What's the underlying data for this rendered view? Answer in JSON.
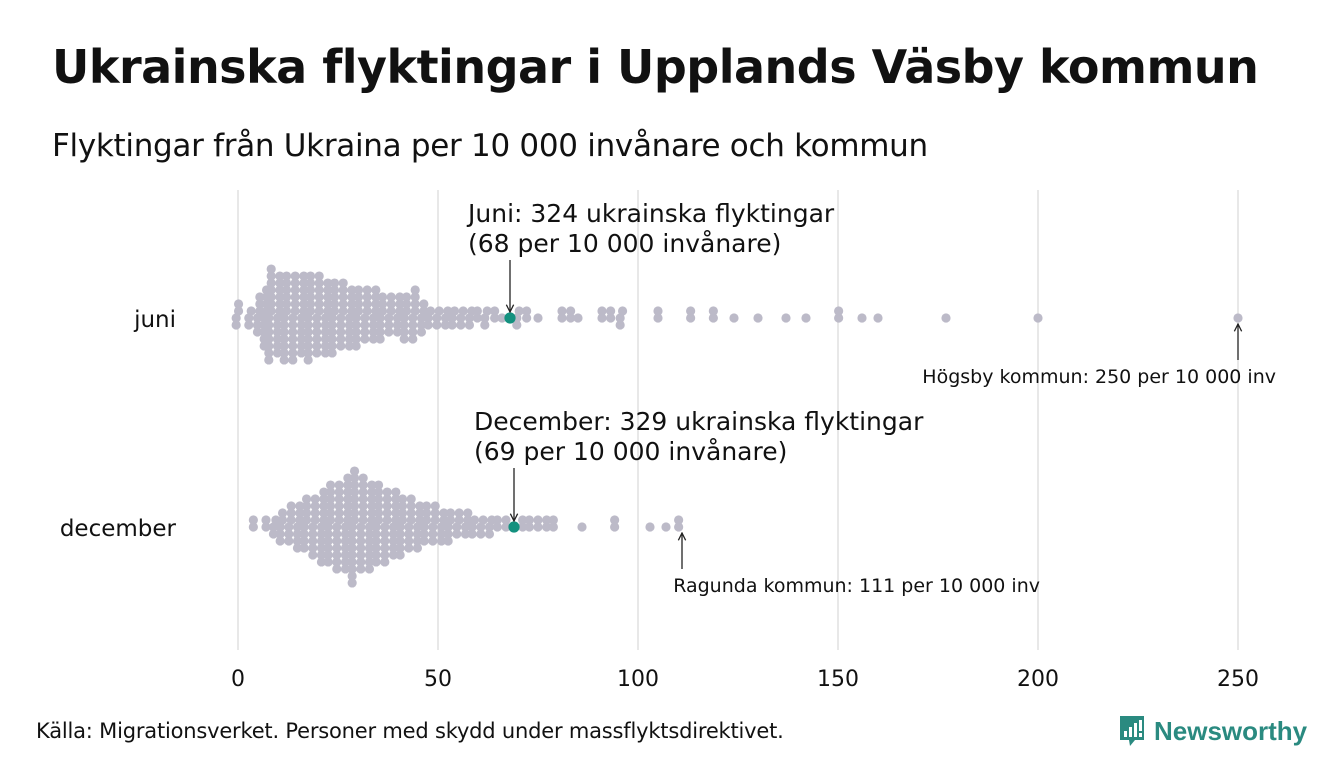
{
  "header": {
    "title": "Ukrainska flyktingar i Upplands Väsby kommun",
    "subtitle": "Flyktingar från Ukraina per 10 000 invånare och kommun"
  },
  "footer": {
    "source": "Källa: Migrationsverket. Personer med skydd under massflyktsdirektivet.",
    "logo_text": "Newsworthy"
  },
  "colors": {
    "point": "#bcbac8",
    "highlight": "#14917f",
    "grid": "#d0d0d0",
    "brand": "#2a8a80"
  },
  "chart_data": {
    "type": "scatter",
    "subtype": "beeswarm",
    "title": "Ukrainska flyktingar i Upplands Väsby kommun",
    "subtitle": "Flyktingar från Ukraina per 10 000 invånare och kommun",
    "xlabel": "",
    "ylabel": "",
    "xlim": [
      0,
      250
    ],
    "x_ticks": [
      0,
      50,
      100,
      150,
      200,
      250
    ],
    "grid": true,
    "categories": [
      "juni",
      "december"
    ],
    "series": [
      {
        "name": "juni",
        "highlight": {
          "value": 68,
          "label_line1": "Juni: 324 ukrainska flyktingar",
          "label_line2": "(68 per 10 000 invånare)"
        },
        "max_annotation": {
          "value": 250,
          "label": "Högsby kommun: 250 per 10 000 inv"
        },
        "distribution": [
          [
            0,
            4
          ],
          [
            3,
            3
          ],
          [
            5,
            6
          ],
          [
            7,
            9
          ],
          [
            8,
            14
          ],
          [
            10,
            12
          ],
          [
            12,
            13
          ],
          [
            14,
            13
          ],
          [
            16,
            12
          ],
          [
            18,
            13
          ],
          [
            20,
            12
          ],
          [
            22,
            11
          ],
          [
            24,
            11
          ],
          [
            26,
            10
          ],
          [
            28,
            9
          ],
          [
            30,
            9
          ],
          [
            32,
            8
          ],
          [
            34,
            8
          ],
          [
            36,
            7
          ],
          [
            38,
            6
          ],
          [
            40,
            6
          ],
          [
            42,
            7
          ],
          [
            44,
            8
          ],
          [
            46,
            5
          ],
          [
            48,
            3
          ],
          [
            50,
            3
          ],
          [
            52,
            3
          ],
          [
            54,
            3
          ],
          [
            56,
            3
          ],
          [
            58,
            3
          ],
          [
            60,
            2
          ],
          [
            62,
            3
          ],
          [
            64,
            2
          ],
          [
            66,
            1
          ],
          [
            70,
            3
          ],
          [
            72,
            2
          ],
          [
            75,
            1
          ],
          [
            81,
            2
          ],
          [
            83,
            2
          ],
          [
            85,
            1
          ],
          [
            91,
            2
          ],
          [
            93,
            2
          ],
          [
            96,
            3
          ],
          [
            105,
            2
          ],
          [
            113,
            2
          ],
          [
            119,
            2
          ],
          [
            124,
            1
          ],
          [
            130,
            1
          ],
          [
            137,
            1
          ],
          [
            142,
            1
          ],
          [
            150,
            2
          ],
          [
            156,
            1
          ],
          [
            160,
            1
          ],
          [
            177,
            1
          ],
          [
            200,
            1
          ],
          [
            250,
            1
          ]
        ]
      },
      {
        "name": "december",
        "highlight": {
          "value": 69,
          "label_line1": "December: 329 ukrainska flyktingar",
          "label_line2": "(69 per 10 000 invånare)"
        },
        "max_annotation": {
          "value": 111,
          "label": "Ragunda kommun: 111 per 10 000 inv"
        },
        "distribution": [
          [
            4,
            2
          ],
          [
            7,
            2
          ],
          [
            9,
            3
          ],
          [
            11,
            5
          ],
          [
            13,
            6
          ],
          [
            15,
            7
          ],
          [
            17,
            8
          ],
          [
            19,
            9
          ],
          [
            21,
            11
          ],
          [
            23,
            12
          ],
          [
            25,
            13
          ],
          [
            27,
            14
          ],
          [
            29,
            17
          ],
          [
            31,
            14
          ],
          [
            33,
            13
          ],
          [
            35,
            12
          ],
          [
            37,
            11
          ],
          [
            39,
            10
          ],
          [
            41,
            9
          ],
          [
            43,
            8
          ],
          [
            45,
            7
          ],
          [
            47,
            6
          ],
          [
            49,
            6
          ],
          [
            51,
            5
          ],
          [
            53,
            5
          ],
          [
            55,
            4
          ],
          [
            57,
            4
          ],
          [
            59,
            3
          ],
          [
            61,
            3
          ],
          [
            63,
            3
          ],
          [
            65,
            2
          ],
          [
            67,
            2
          ],
          [
            71,
            2
          ],
          [
            73,
            2
          ],
          [
            75,
            2
          ],
          [
            77,
            2
          ],
          [
            79,
            2
          ],
          [
            86,
            1
          ],
          [
            94,
            2
          ],
          [
            103,
            1
          ],
          [
            107,
            1
          ],
          [
            110,
            2
          ]
        ]
      }
    ]
  }
}
